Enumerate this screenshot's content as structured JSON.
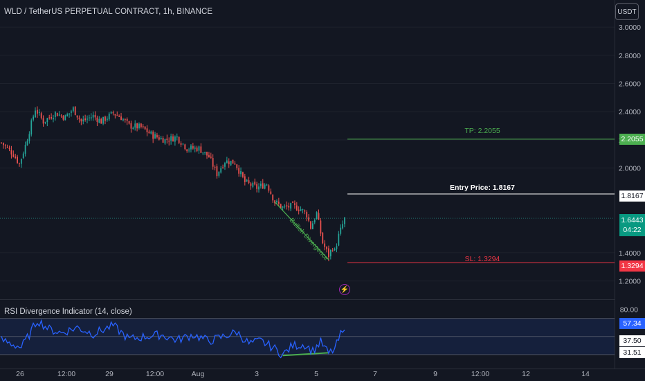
{
  "header": {
    "title": "WLD / TetherUS PERPETUAL CONTRACT, 1h, BINANCE",
    "currency": "USDT"
  },
  "colors": {
    "background": "#131722",
    "up": "#26a69a",
    "down": "#ef5350",
    "tp_line": "#4caf50",
    "sl_line": "#f23645",
    "entry_line": "#ffffff",
    "rsi_line": "#2962ff",
    "rsi_band": "#2962ff",
    "divergence": "#4caf50"
  },
  "price_axis": {
    "ticks": [
      "3.0000",
      "2.8000",
      "2.6000",
      "2.4000",
      "2.2000",
      "2.0000",
      "1.4000",
      "1.2000"
    ],
    "tick_values": [
      3.0,
      2.8,
      2.6,
      2.4,
      2.2,
      2.0,
      1.4,
      1.2
    ],
    "range": [
      1.08,
      3.02
    ]
  },
  "rsi_axis": {
    "ticks": [
      "80.00"
    ],
    "tick_values": [
      80
    ],
    "range": [
      20,
      85
    ]
  },
  "time_axis": {
    "labels": [
      "26",
      "12:00",
      "29",
      "12:00",
      "Aug",
      "3",
      "5",
      "7",
      "9",
      "12:00",
      "12",
      "14"
    ]
  },
  "annotations": {
    "tp_label": "TP: 2.2055",
    "entry_label": "Entry Price: 1.8167",
    "sl_label": "SL: 1.3294",
    "divergence_label": "Bullish Divergence"
  },
  "levels": {
    "tp": 2.2055,
    "entry": 1.8167,
    "sl": 1.3294,
    "last": 1.6443
  },
  "badges": {
    "tp": "2.2055",
    "entry": "1.8167",
    "last_price": "1.6443",
    "countdown": "04:22",
    "sl": "1.3294",
    "rsi_value": "57.34",
    "rsi_upper": "37.50",
    "rsi_lower": "31.51"
  },
  "indicator": {
    "title": "RSI Divergence Indicator (14, close)",
    "value": 57.34
  },
  "chart_data": {
    "type": "candlestick",
    "title": "WLD / TetherUS PERPETUAL CONTRACT, 1h, BINANCE",
    "xlabel": "",
    "ylabel": "",
    "ylim": [
      1.08,
      3.02
    ],
    "anchors": [
      {
        "i": 0,
        "p": 2.18
      },
      {
        "i": 6,
        "p": 2.1
      },
      {
        "i": 9,
        "p": 2.03
      },
      {
        "i": 12,
        "p": 2.16
      },
      {
        "i": 17,
        "p": 2.42
      },
      {
        "i": 21,
        "p": 2.33
      },
      {
        "i": 27,
        "p": 2.39
      },
      {
        "i": 32,
        "p": 2.36
      },
      {
        "i": 36,
        "p": 2.42
      },
      {
        "i": 40,
        "p": 2.33
      },
      {
        "i": 46,
        "p": 2.37
      },
      {
        "i": 50,
        "p": 2.33
      },
      {
        "i": 56,
        "p": 2.39
      },
      {
        "i": 60,
        "p": 2.36
      },
      {
        "i": 64,
        "p": 2.3
      },
      {
        "i": 70,
        "p": 2.29
      },
      {
        "i": 76,
        "p": 2.23
      },
      {
        "i": 82,
        "p": 2.2
      },
      {
        "i": 88,
        "p": 2.22
      },
      {
        "i": 93,
        "p": 2.14
      },
      {
        "i": 99,
        "p": 2.14
      },
      {
        "i": 104,
        "p": 2.08
      },
      {
        "i": 108,
        "p": 1.96
      },
      {
        "i": 112,
        "p": 2.05
      },
      {
        "i": 117,
        "p": 2.04
      },
      {
        "i": 122,
        "p": 1.9
      },
      {
        "i": 128,
        "p": 1.86
      },
      {
        "i": 133,
        "p": 1.89
      },
      {
        "i": 137,
        "p": 1.76
      },
      {
        "i": 141,
        "p": 1.72
      },
      {
        "i": 146,
        "p": 1.73
      },
      {
        "i": 150,
        "p": 1.71
      },
      {
        "i": 153,
        "p": 1.67
      },
      {
        "i": 155,
        "p": 1.58
      },
      {
        "i": 158,
        "p": 1.68
      },
      {
        "i": 161,
        "p": 1.47
      },
      {
        "i": 164,
        "p": 1.38
      },
      {
        "i": 166,
        "p": 1.44
      },
      {
        "i": 167,
        "p": 1.41
      },
      {
        "i": 169,
        "p": 1.52
      },
      {
        "i": 172,
        "p": 1.64
      }
    ],
    "candle_count": 173,
    "levels": [
      {
        "name": "TP",
        "value": 2.2055
      },
      {
        "name": "Entry Price",
        "value": 1.8167
      },
      {
        "name": "SL",
        "value": 1.3294
      },
      {
        "name": "last",
        "value": 1.6443
      }
    ],
    "rsi": {
      "anchors": [
        {
          "i": 0,
          "v": 46
        },
        {
          "i": 5,
          "v": 42
        },
        {
          "i": 10,
          "v": 38
        },
        {
          "i": 14,
          "v": 52
        },
        {
          "i": 18,
          "v": 68
        },
        {
          "i": 24,
          "v": 58
        },
        {
          "i": 30,
          "v": 54
        },
        {
          "i": 38,
          "v": 60
        },
        {
          "i": 46,
          "v": 53
        },
        {
          "i": 56,
          "v": 62
        },
        {
          "i": 64,
          "v": 47
        },
        {
          "i": 72,
          "v": 50
        },
        {
          "i": 80,
          "v": 52
        },
        {
          "i": 88,
          "v": 46
        },
        {
          "i": 96,
          "v": 52
        },
        {
          "i": 104,
          "v": 45
        },
        {
          "i": 110,
          "v": 49
        },
        {
          "i": 118,
          "v": 55
        },
        {
          "i": 124,
          "v": 42
        },
        {
          "i": 130,
          "v": 45
        },
        {
          "i": 136,
          "v": 38
        },
        {
          "i": 141,
          "v": 30
        },
        {
          "i": 146,
          "v": 40
        },
        {
          "i": 152,
          "v": 41
        },
        {
          "i": 156,
          "v": 34
        },
        {
          "i": 160,
          "v": 44
        },
        {
          "i": 164,
          "v": 31
        },
        {
          "i": 167,
          "v": 36
        },
        {
          "i": 170,
          "v": 52
        },
        {
          "i": 172,
          "v": 57.34
        }
      ],
      "band_upper": 57.34,
      "band_lower": 31.51,
      "level_mid": 37.5,
      "ylim": [
        20,
        85
      ]
    }
  }
}
